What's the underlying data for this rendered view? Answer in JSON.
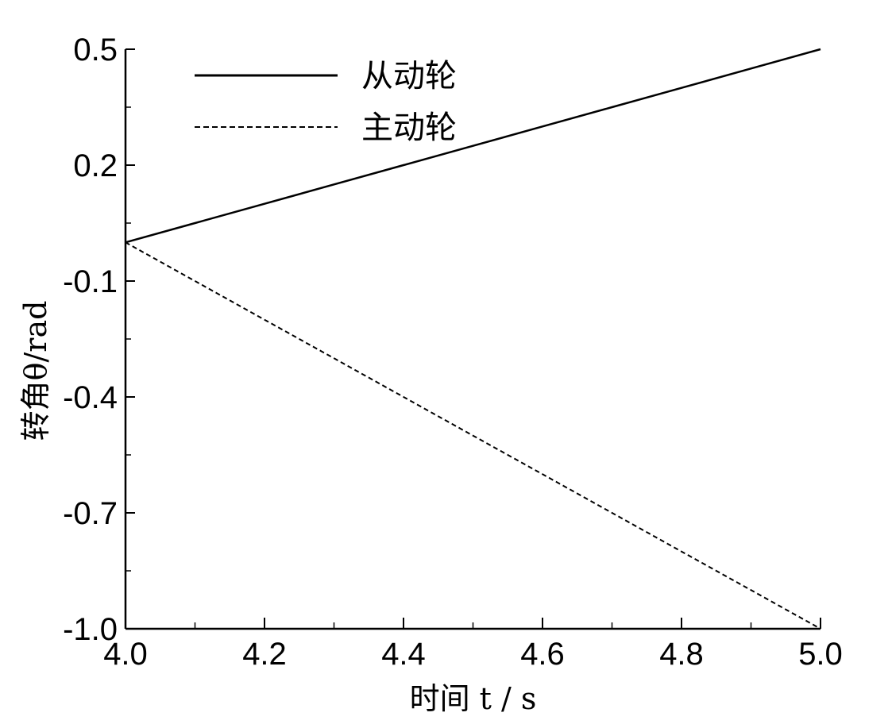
{
  "chart_data": {
    "type": "line",
    "xlabel": "时间 t / s",
    "ylabel": "转角θ/rad",
    "xlim": [
      4.0,
      5.0
    ],
    "ylim": [
      -1.0,
      0.5
    ],
    "x_ticks": [
      "4.0",
      "4.2",
      "4.4",
      "4.6",
      "4.8",
      "5.0"
    ],
    "y_ticks": [
      "-1.0",
      "-0.7",
      "-0.4",
      "-0.1",
      "0.2",
      "0.5"
    ],
    "legend_position": "top-left",
    "grid": false,
    "series": [
      {
        "name": "从动轮",
        "style": "solid",
        "x": [
          4.0,
          4.1,
          4.2,
          4.3,
          4.4,
          4.5,
          4.6,
          4.7,
          4.8,
          4.9,
          5.0
        ],
        "y": [
          0.0,
          0.05,
          0.1,
          0.15,
          0.2,
          0.25,
          0.3,
          0.35,
          0.4,
          0.45,
          0.5
        ]
      },
      {
        "name": "主动轮",
        "style": "dashed",
        "x": [
          4.0,
          4.1,
          4.2,
          4.3,
          4.4,
          4.5,
          4.6,
          4.7,
          4.8,
          4.9,
          5.0
        ],
        "y": [
          0.0,
          -0.1,
          -0.2,
          -0.3,
          -0.4,
          -0.5,
          -0.6,
          -0.7,
          -0.8,
          -0.9,
          -1.0
        ]
      }
    ]
  }
}
